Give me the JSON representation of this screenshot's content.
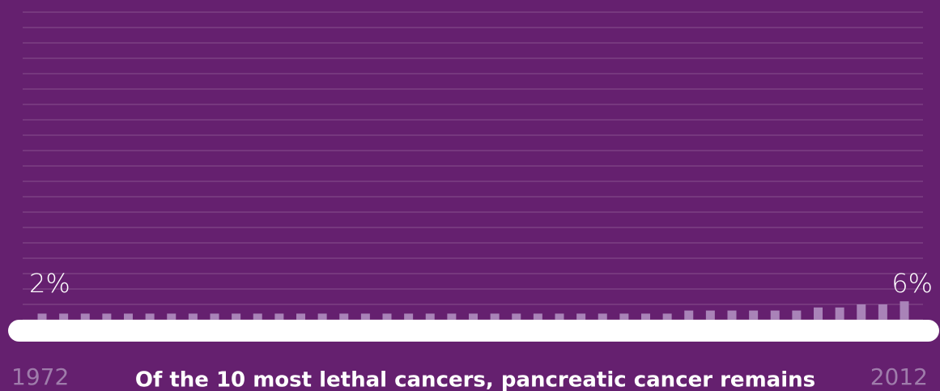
{
  "chart_data": {
    "type": "bar",
    "caption": "Of the 10 most lethal cancers, pancreatic cancer remains",
    "categories": [
      "1972",
      null,
      null,
      null,
      null,
      null,
      null,
      null,
      null,
      null,
      null,
      null,
      null,
      null,
      null,
      null,
      null,
      null,
      null,
      null,
      null,
      null,
      null,
      null,
      null,
      null,
      null,
      null,
      null,
      null,
      null,
      null,
      null,
      null,
      null,
      null,
      null,
      null,
      null,
      null,
      "2012"
    ],
    "values": [
      2,
      2,
      2,
      2,
      2,
      2,
      2,
      2,
      2,
      2,
      2,
      2,
      2,
      2,
      2,
      2,
      2,
      2,
      2,
      2,
      2,
      2,
      2,
      2,
      2,
      2,
      2,
      2,
      2,
      2,
      3,
      3,
      3,
      3,
      3,
      3,
      4,
      4,
      5,
      5,
      6
    ],
    "value_labels": [
      "2%",
      null,
      null,
      null,
      null,
      null,
      null,
      null,
      null,
      null,
      null,
      null,
      null,
      null,
      null,
      null,
      null,
      null,
      null,
      null,
      null,
      null,
      null,
      null,
      null,
      null,
      null,
      null,
      null,
      null,
      null,
      null,
      null,
      null,
      null,
      null,
      null,
      null,
      null,
      null,
      "6%"
    ],
    "color": "#a983b8",
    "ylim": [
      0,
      100
    ],
    "yticks": [
      0,
      5,
      10,
      15,
      20,
      25,
      30,
      35,
      40,
      45,
      50,
      55,
      60,
      65,
      70,
      75,
      80,
      85,
      90,
      95,
      100
    ],
    "grid": true
  }
}
